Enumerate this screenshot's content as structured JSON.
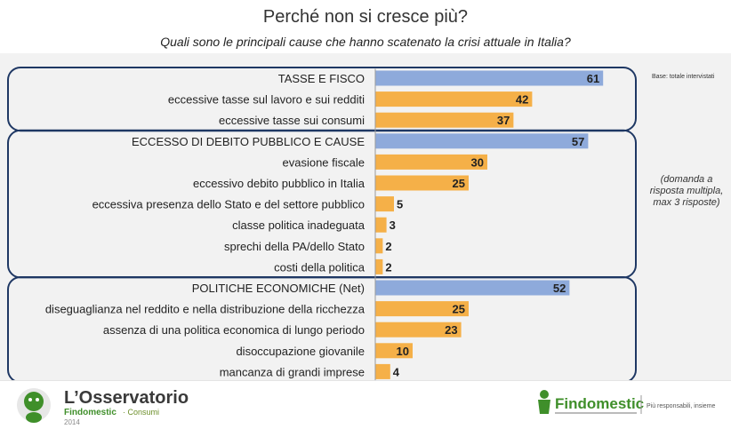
{
  "header": {
    "title": "Perché non si cresce più?",
    "subtitle": "Quali sono le principali cause che hanno scatenato la crisi attuale in Italia?"
  },
  "notes": {
    "base": "Base: totale intervistati",
    "multiple": "(domanda a risposta multipla, max 3 risposte)"
  },
  "footer": {
    "observatory_title": "L’Osservatorio",
    "observatory_brand": "Findomestic",
    "observatory_section": "· Consumi",
    "observatory_year": "2014",
    "findomestic_name": "Findomestic",
    "findomestic_tagline": "Più responsabili, insieme"
  },
  "colors": {
    "group_bar": "#8eaadb",
    "item_bar": "#f5b048",
    "group_border": "#1f3864"
  },
  "chart_data": {
    "type": "bar",
    "orientation": "horizontal",
    "xlim": [
      0,
      100
    ],
    "groups": [
      {
        "label": "TASSE E FISCO",
        "value": 61,
        "items": [
          {
            "label": "eccessive tasse sul lavoro e sui redditi",
            "value": 42
          },
          {
            "label": "eccessive tasse sui consumi",
            "value": 37
          }
        ]
      },
      {
        "label": "ECCESSO DI DEBITO PUBBLICO E CAUSE",
        "value": 57,
        "items": [
          {
            "label": "evasione fiscale",
            "value": 30
          },
          {
            "label": "eccessivo debito pubblico in Italia",
            "value": 25
          },
          {
            "label": "eccessiva presenza dello Stato e del settore pubblico",
            "value": 5
          },
          {
            "label": "classe politica inadeguata",
            "value": 3
          },
          {
            "label": "sprechi della PA/dello Stato",
            "value": 2
          },
          {
            "label": "costi della politica",
            "value": 2
          }
        ]
      },
      {
        "label": "POLITICHE ECONOMICHE (Net)",
        "value": 52,
        "items": [
          {
            "label": "diseguaglianza nel reddito e nella distribuzione della ricchezza",
            "value": 25
          },
          {
            "label": "assenza di una politica economica di lungo periodo",
            "value": 23
          },
          {
            "label": "disoccupazione giovanile",
            "value": 10
          },
          {
            "label": "mancanza di grandi imprese",
            "value": 4
          }
        ]
      }
    ]
  }
}
